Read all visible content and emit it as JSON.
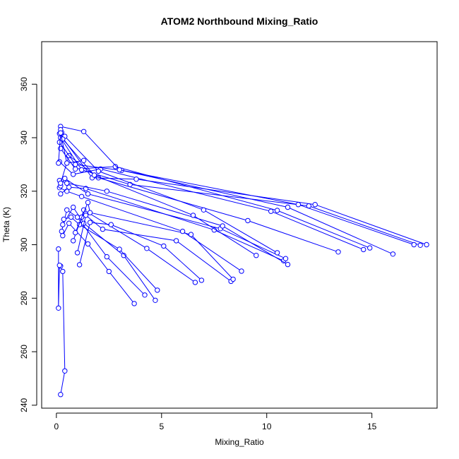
{
  "chart_data": {
    "type": "scatter",
    "title": "ATOM2 Northbound Mixing_Ratio",
    "xlabel": "Mixing_Ratio",
    "ylabel": "Theta (K)",
    "xlim": [
      -0.7,
      18.1
    ],
    "ylim": [
      238.9,
      375.9
    ],
    "xticks": [
      0,
      5,
      10,
      15
    ],
    "yticks": [
      240,
      260,
      280,
      300,
      320,
      340,
      360
    ],
    "color": "#0000ff",
    "grid": false,
    "legend": "none",
    "series": [
      {
        "x": [
          0.2,
          0.4,
          0.3,
          0.2,
          0.15,
          0.1,
          0.1
        ],
        "y": [
          244.0,
          252.8,
          290.0,
          292.0,
          292.3,
          276.3,
          298.4
        ]
      },
      {
        "x": [
          0.3,
          0.6,
          1.5,
          2.5,
          3.7
        ],
        "y": [
          303.4,
          308.0,
          300.3,
          290.0,
          278.0
        ]
      },
      {
        "x": [
          0.25,
          0.5,
          1.0,
          2.4,
          4.2
        ],
        "y": [
          305.0,
          313.0,
          310.3,
          295.5,
          281.2
        ]
      },
      {
        "x": [
          0.3,
          0.8,
          1.3,
          3.2,
          4.7
        ],
        "y": [
          307.5,
          314.0,
          308.0,
          296.0,
          279.2
        ]
      },
      {
        "x": [
          0.35,
          0.7,
          1.1,
          3.0,
          4.8
        ],
        "y": [
          309.5,
          310.3,
          307.5,
          298.3,
          283.0
        ]
      },
      {
        "x": [
          0.8,
          1.2,
          1.3,
          4.3,
          6.6
        ],
        "y": [
          301.5,
          310.3,
          313.0,
          298.6,
          285.9
        ]
      },
      {
        "x": [
          1.1,
          1.6,
          2.6,
          5.1,
          6.9
        ],
        "y": [
          292.5,
          308.3,
          307.5,
          299.5,
          286.7
        ]
      },
      {
        "x": [
          1.0,
          1.4,
          2.2,
          5.7,
          8.3
        ],
        "y": [
          297.0,
          311.0,
          305.8,
          301.5,
          286.3
        ]
      },
      {
        "x": [
          0.9,
          1.5,
          1.6,
          6.4,
          8.4
        ],
        "y": [
          304.5,
          315.8,
          312.0,
          303.8,
          287.1
        ]
      },
      {
        "x": [
          0.15,
          0.5,
          1.2,
          6.0,
          8.8
        ],
        "y": [
          321.3,
          320.0,
          318.0,
          305.0,
          290.1
        ]
      },
      {
        "x": [
          0.2,
          0.6,
          1.4,
          7.5,
          10.8
        ],
        "y": [
          319.0,
          321.5,
          321.0,
          305.5,
          294.0
        ]
      },
      {
        "x": [
          0.2,
          0.4,
          1.5,
          7.8,
          10.9
        ],
        "y": [
          322.0,
          324.8,
          319.0,
          306.0,
          294.8
        ]
      },
      {
        "x": [
          0.15,
          0.5,
          2.4,
          7.9,
          11.0
        ],
        "y": [
          324.0,
          323.0,
          320.0,
          307.0,
          292.6
        ]
      },
      {
        "x": [
          0.2,
          0.6,
          2.0,
          9.1,
          13.4
        ],
        "y": [
          323.0,
          333.3,
          325.0,
          309.0,
          297.3
        ]
      },
      {
        "x": [
          0.15,
          0.8,
          2.1,
          10.2,
          14.6
        ],
        "y": [
          331.0,
          326.3,
          328.3,
          312.5,
          298.2
        ]
      },
      {
        "x": [
          0.2,
          0.9,
          2.8,
          10.5,
          14.9
        ],
        "y": [
          336.0,
          328.3,
          329.2,
          312.8,
          298.8
        ]
      },
      {
        "x": [
          0.15,
          0.9,
          3.1,
          11.0,
          16.0
        ],
        "y": [
          338.3,
          330.0,
          327.8,
          314.0,
          296.5
        ]
      },
      {
        "x": [
          0.2,
          1.2,
          3.5,
          12.0,
          17.3
        ],
        "y": [
          340.0,
          328.0,
          322.5,
          314.5,
          299.8
        ]
      },
      {
        "x": [
          0.15,
          1.7,
          3.8,
          12.3,
          17.6
        ],
        "y": [
          341.5,
          325.0,
          324.5,
          315.0,
          300.0
        ]
      },
      {
        "x": [
          0.2,
          1.3,
          3.0,
          11.5,
          17.0
        ],
        "y": [
          344.2,
          342.3,
          328.0,
          315.0,
          300.0
        ]
      },
      {
        "x": [
          0.25,
          0.4,
          2.0,
          7.0,
          10.5
        ],
        "y": [
          342.0,
          340.5,
          327.5,
          313.0,
          297.0
        ]
      },
      {
        "x": [
          0.2,
          0.3,
          1.8,
          6.5,
          9.5
        ],
        "y": [
          343.0,
          339.5,
          326.0,
          311.0,
          296.0
        ]
      },
      {
        "x": [
          0.1,
          0.2,
          0.5,
          1.3
        ],
        "y": [
          330.5,
          341.8,
          330.5,
          331.5
        ]
      }
    ]
  }
}
